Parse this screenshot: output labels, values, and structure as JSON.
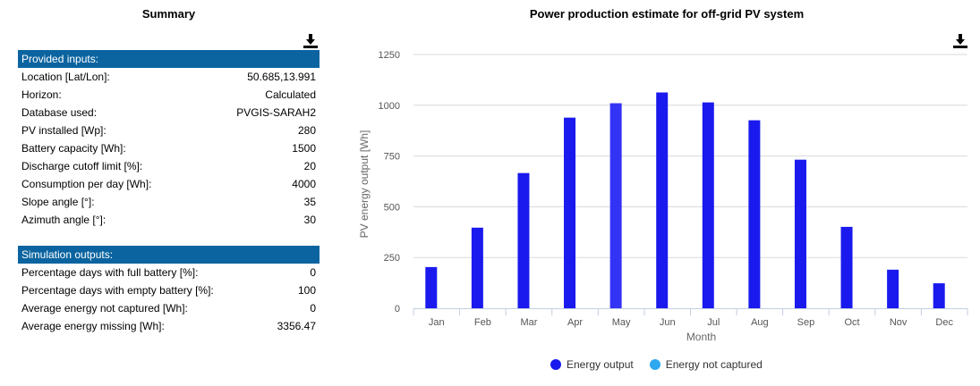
{
  "summary": {
    "title": "Summary",
    "download_icon": "download-icon",
    "inputs_header": "Provided inputs:",
    "inputs": [
      {
        "label": "Location [Lat/Lon]:",
        "value": "50.685,13.991"
      },
      {
        "label": "Horizon:",
        "value": "Calculated"
      },
      {
        "label": "Database used:",
        "value": "PVGIS-SARAH2"
      },
      {
        "label": "PV installed [Wp]:",
        "value": "280"
      },
      {
        "label": "Battery capacity [Wh]:",
        "value": "1500"
      },
      {
        "label": "Discharge cutoff limit [%]:",
        "value": "20"
      },
      {
        "label": "Consumption per day [Wh]:",
        "value": "4000"
      },
      {
        "label": "Slope angle [°]:",
        "value": "35"
      },
      {
        "label": "Azimuth angle [°]:",
        "value": "30"
      }
    ],
    "outputs_header": "Simulation outputs:",
    "outputs": [
      {
        "label": "Percentage days with full battery [%]:",
        "value": "0"
      },
      {
        "label": "Percentage days with empty battery [%]:",
        "value": "100"
      },
      {
        "label": "Average energy not captured [Wh]:",
        "value": "0"
      },
      {
        "label": "Average energy missing [Wh]:",
        "value": "3356.47"
      }
    ],
    "header_color": "#0b64a0"
  },
  "chart_data": {
    "type": "bar",
    "title": "Power production estimate for off-grid PV system",
    "xlabel": "Month",
    "ylabel": "PV energy output [Wh]",
    "categories": [
      "Jan",
      "Feb",
      "Mar",
      "Apr",
      "May",
      "Jun",
      "Jul",
      "Aug",
      "Sep",
      "Oct",
      "Nov",
      "Dec"
    ],
    "series": [
      {
        "name": "Energy output",
        "color": "#1a1aee",
        "values": [
          203,
          397,
          666,
          939,
          1010,
          1063,
          1014,
          926,
          732,
          401,
          190,
          123
        ]
      },
      {
        "name": "Energy not captured",
        "color": "#2ea8f0",
        "values": [
          0,
          0,
          0,
          0,
          0,
          0,
          0,
          0,
          0,
          0,
          0,
          0
        ]
      }
    ],
    "highlighted_category": "May",
    "highlight_color": "#3333f5",
    "ylim": [
      0,
      1250
    ],
    "yticks": [
      0,
      250,
      500,
      750,
      1000,
      1250
    ],
    "grid": true,
    "legend_position": "bottom"
  }
}
